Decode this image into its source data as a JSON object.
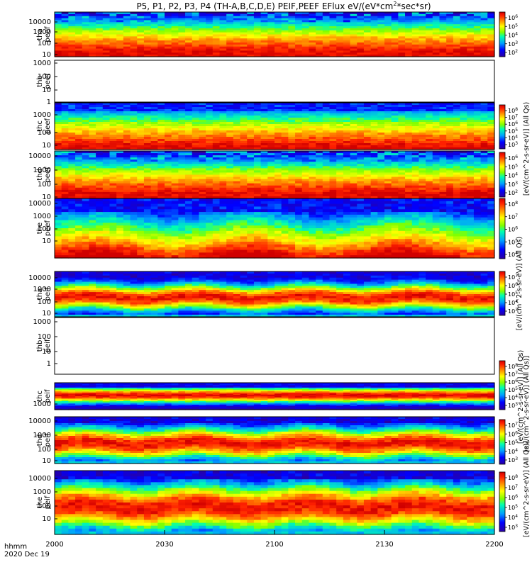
{
  "chart_data": {
    "type": "heatmap",
    "title": "P5, P1, P2, P3, P4 (TH-A,B,C,D,E) PEIF,PEEF EFlux eV/(eV*cm",
    "title_sup": "2",
    "title_tail": "*sec*sr)",
    "x_ticks": [
      "2000",
      "2030",
      "2100",
      "2130",
      "2200"
    ],
    "x_axis_label": "hhmm",
    "date_label": "2020 Dec 19",
    "colorbar_label_peef_a": "[eV/(cm^2-s-sr-eV)] (All Qs)",
    "colorbar_label_thb": "[eV/(cm^2-s-sr-eV)] (All Qs)]",
    "colorbar_label_peif_b": "[eV/(cm^2-s-sr-eV)] (All Qs)",
    "colorbar_label_peif_c": "[eV/(cm^2-s-sr-eV)] (All Qs)",
    "colorbar_label_peif_e": "[eV/(cm^2-s-sr-eV)] (All Qs)]",
    "panels": [
      {
        "probe": "tha",
        "product": "peef",
        "yticks": [
          "10000",
          "1000",
          "100",
          "10"
        ],
        "colorbar": {
          "ticks": [
            "10^6",
            "10^5",
            "10^4",
            "10^3",
            "10^2"
          ],
          "log_range": [
            1.5,
            6.8
          ]
        },
        "profile": {
          "type": "electron_full",
          "mean": 1.7,
          "noise_from": 0.3
        }
      },
      {
        "probe": "thb",
        "product": "peef",
        "yticks": [
          "1000",
          "100",
          "10",
          "1"
        ],
        "empty": true
      },
      {
        "probe": "thc",
        "product": "peef",
        "yticks": [
          "1000",
          "100",
          "10"
        ],
        "colorbar": {
          "ticks": [
            "10^8",
            "10^7",
            "10^6",
            "10^5",
            "10^4",
            "10^3"
          ],
          "log_range": [
            2.8,
            8.2
          ]
        },
        "profile": {
          "type": "electron_thc",
          "mean": 1.3
        }
      },
      {
        "probe": "thd",
        "product": "peef",
        "yticks": [
          "10000",
          "1000",
          "100",
          "10"
        ],
        "colorbar": {
          "ticks": [
            "10^6",
            "10^5",
            "10^4",
            "10^3",
            "10^2"
          ],
          "log_range": [
            1.5,
            6.8
          ]
        },
        "profile": {
          "type": "electron_full",
          "mean": 1.7,
          "noise_from": 0.35
        }
      },
      {
        "probe": "the",
        "product": "peef",
        "yticks": [
          "10000",
          "1000",
          "100",
          "10"
        ],
        "colorbar": {
          "ticks": [
            "10^8",
            "10^7",
            "10^6",
            "10^5",
            "10^4"
          ],
          "log_range": [
            3.5,
            8.2
          ]
        },
        "profile": {
          "type": "electron_the",
          "mean": 2.1
        }
      },
      {
        "probe": "tha",
        "product": "peif",
        "yticks": [
          "10000",
          "1000",
          "100",
          "10"
        ],
        "colorbar": {
          "ticks": [
            "10^7",
            "10^6",
            "10^5",
            "10^4",
            "10^3"
          ],
          "log_range": [
            2.8,
            7.6
          ]
        },
        "profile": {
          "type": "ion",
          "mean": 2.6,
          "sigma": 0.65
        }
      },
      {
        "probe": "thb",
        "product": "peif",
        "yticks": [
          "1000",
          "100",
          "10",
          "1"
        ],
        "empty": true
      },
      {
        "probe": "thc",
        "product": "peif",
        "yticks": [
          "1000"
        ],
        "colorbar": {
          "ticks": [
            "10^8",
            "10^7",
            "10^6",
            "10^5",
            "10^4",
            "10^3"
          ],
          "log_range": [
            2.6,
            8.2
          ]
        },
        "profile": {
          "type": "ion_thc",
          "mean": 2.7
        }
      },
      {
        "probe": "thd",
        "product": "peif",
        "yticks": [
          "10000",
          "1000",
          "100",
          "10"
        ],
        "colorbar": {
          "ticks": [
            "10^7",
            "10^6",
            "10^5",
            "10^4",
            "10^3"
          ],
          "log_range": [
            2.8,
            7.6
          ]
        },
        "profile": {
          "type": "ion",
          "mean": 2.3,
          "sigma": 0.75
        }
      },
      {
        "probe": "the",
        "product": "peif",
        "yticks": [
          "10000",
          "1000",
          "100",
          "10"
        ],
        "colorbar": {
          "ticks": [
            "10^8",
            "10^7",
            "10^6",
            "10^5",
            "10^4",
            "10^3"
          ],
          "log_range": [
            2.6,
            8.2
          ]
        },
        "profile": {
          "type": "ion",
          "mean": 2.2,
          "sigma": 0.8
        }
      }
    ]
  }
}
